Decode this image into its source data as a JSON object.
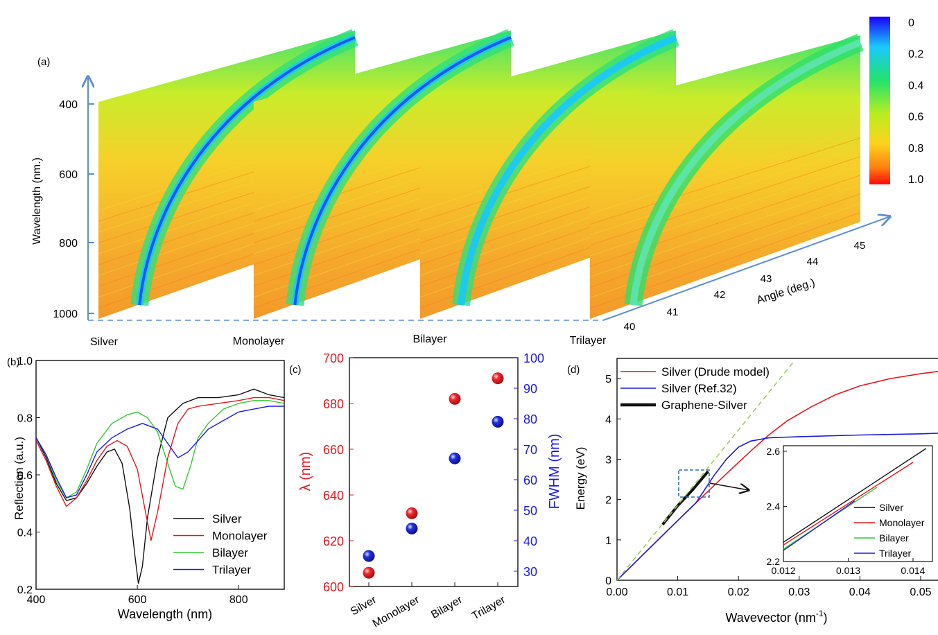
{
  "panels": {
    "a": "(a)",
    "b": "(b)",
    "c": "(c)",
    "d": "(d)"
  },
  "colors": {
    "axis_arrow": "#5b8fd0",
    "red": "#e8141b",
    "blue": "#1a1ae6",
    "green": "#2ecc2e",
    "black": "#111111",
    "inset_box": "#2f6fb0",
    "dashed_line": "#9ccc5a"
  },
  "chart_data": [
    {
      "id": "a",
      "type": "heatmap",
      "ylabel": "Wavelength (nm.)",
      "zlabel": "Angle (deg.)",
      "yticks": [
        "400",
        "600",
        "800",
        "1000"
      ],
      "angle_ticks": [
        "40",
        "41",
        "42",
        "43",
        "44",
        "45"
      ],
      "panels": [
        "Silver",
        "Monolayer",
        "Bilayer",
        "Trilayer"
      ],
      "colorbar": {
        "ticks": [
          "0",
          "0.2",
          "0.4",
          "0.6",
          "0.8",
          "1.0"
        ],
        "min": 0,
        "max": 1.0
      }
    },
    {
      "id": "b",
      "type": "line",
      "xlabel": "Wavelength (nm)",
      "ylabel": "Reflection (a.u.)",
      "xlim": [
        400,
        890
      ],
      "ylim": [
        0.2,
        1.0
      ],
      "xticks": [
        "400",
        "600",
        "800"
      ],
      "yticks": [
        "0.2",
        "0.4",
        "0.6",
        "0.8",
        "1.0"
      ],
      "legend": "bottom-right",
      "series": [
        {
          "name": "Silver",
          "color": "#111111",
          "points": [
            [
              400,
              0.73
            ],
            [
              420,
              0.66
            ],
            [
              440,
              0.57
            ],
            [
              460,
              0.51
            ],
            [
              480,
              0.52
            ],
            [
              500,
              0.57
            ],
            [
              520,
              0.63
            ],
            [
              540,
              0.68
            ],
            [
              555,
              0.69
            ],
            [
              570,
              0.64
            ],
            [
              585,
              0.48
            ],
            [
              595,
              0.32
            ],
            [
              602,
              0.22
            ],
            [
              610,
              0.28
            ],
            [
              620,
              0.45
            ],
            [
              640,
              0.66
            ],
            [
              660,
              0.8
            ],
            [
              690,
              0.85
            ],
            [
              720,
              0.87
            ],
            [
              760,
              0.87
            ],
            [
              800,
              0.88
            ],
            [
              830,
              0.9
            ],
            [
              860,
              0.88
            ],
            [
              890,
              0.87
            ]
          ]
        },
        {
          "name": "Monolayer",
          "color": "#e8141b",
          "points": [
            [
              400,
              0.72
            ],
            [
              420,
              0.65
            ],
            [
              440,
              0.56
            ],
            [
              460,
              0.49
            ],
            [
              480,
              0.52
            ],
            [
              500,
              0.58
            ],
            [
              520,
              0.65
            ],
            [
              540,
              0.7
            ],
            [
              560,
              0.72
            ],
            [
              580,
              0.7
            ],
            [
              600,
              0.62
            ],
            [
              615,
              0.48
            ],
            [
              627,
              0.37
            ],
            [
              640,
              0.47
            ],
            [
              660,
              0.66
            ],
            [
              680,
              0.78
            ],
            [
              700,
              0.83
            ],
            [
              720,
              0.84
            ],
            [
              760,
              0.85
            ],
            [
              800,
              0.86
            ],
            [
              830,
              0.87
            ],
            [
              860,
              0.87
            ],
            [
              890,
              0.86
            ]
          ]
        },
        {
          "name": "Bilayer",
          "color": "#2ecc2e",
          "points": [
            [
              400,
              0.73
            ],
            [
              420,
              0.67
            ],
            [
              440,
              0.58
            ],
            [
              460,
              0.52
            ],
            [
              480,
              0.54
            ],
            [
              500,
              0.62
            ],
            [
              520,
              0.71
            ],
            [
              550,
              0.78
            ],
            [
              580,
              0.81
            ],
            [
              600,
              0.82
            ],
            [
              620,
              0.8
            ],
            [
              640,
              0.75
            ],
            [
              660,
              0.64
            ],
            [
              675,
              0.56
            ],
            [
              690,
              0.55
            ],
            [
              705,
              0.63
            ],
            [
              720,
              0.73
            ],
            [
              740,
              0.78
            ],
            [
              770,
              0.83
            ],
            [
              800,
              0.85
            ],
            [
              830,
              0.86
            ],
            [
              860,
              0.86
            ],
            [
              890,
              0.85
            ]
          ]
        },
        {
          "name": "Trilayer",
          "color": "#1a1ae6",
          "points": [
            [
              400,
              0.73
            ],
            [
              420,
              0.67
            ],
            [
              440,
              0.59
            ],
            [
              460,
              0.52
            ],
            [
              480,
              0.53
            ],
            [
              500,
              0.6
            ],
            [
              520,
              0.68
            ],
            [
              550,
              0.73
            ],
            [
              580,
              0.76
            ],
            [
              610,
              0.78
            ],
            [
              640,
              0.76
            ],
            [
              660,
              0.71
            ],
            [
              680,
              0.66
            ],
            [
              700,
              0.68
            ],
            [
              720,
              0.72
            ],
            [
              740,
              0.76
            ],
            [
              770,
              0.79
            ],
            [
              800,
              0.82
            ],
            [
              830,
              0.83
            ],
            [
              860,
              0.84
            ],
            [
              890,
              0.84
            ]
          ]
        }
      ]
    },
    {
      "id": "c",
      "type": "scatter",
      "categories": [
        "Silver",
        "Monolayer",
        "Bilayer",
        "Trilayer"
      ],
      "ylabel_left": "λ (nm)",
      "ylabel_right": "FWHM (nm)",
      "ylim_left": [
        600,
        700
      ],
      "ylim_right": [
        25,
        100
      ],
      "yticks_left": [
        "600",
        "620",
        "640",
        "660",
        "680",
        "700"
      ],
      "yticks_right": [
        "30",
        "40",
        "50",
        "60",
        "70",
        "80",
        "90",
        "100"
      ],
      "lambda_values": [
        606,
        632,
        682,
        691
      ],
      "fwhm_values": [
        35,
        44,
        67,
        79
      ]
    },
    {
      "id": "d",
      "type": "line",
      "xlabel": "Wavevector (nm",
      "xlabel_sup": "-1",
      "xlabel_end": ")",
      "ylabel": "Energy (eV)",
      "xlim": [
        0,
        0.054
      ],
      "ylim": [
        0,
        5.5
      ],
      "xticks": [
        "0.00",
        "0.01",
        "0.02",
        "0.03",
        "0.04",
        "0.05"
      ],
      "yticks": [
        "0",
        "1",
        "2",
        "3",
        "4",
        "5"
      ],
      "legend": "top-left",
      "series": [
        {
          "name": "Silver (Drude model)",
          "color": "#e8141b",
          "points": [
            [
              0,
              0
            ],
            [
              0.005,
              0.74
            ],
            [
              0.01,
              1.48
            ],
            [
              0.013,
              1.92
            ],
            [
              0.016,
              2.35
            ],
            [
              0.019,
              2.78
            ],
            [
              0.022,
              3.2
            ],
            [
              0.025,
              3.6
            ],
            [
              0.028,
              3.95
            ],
            [
              0.032,
              4.3
            ],
            [
              0.036,
              4.6
            ],
            [
              0.04,
              4.82
            ],
            [
              0.045,
              5.0
            ],
            [
              0.05,
              5.12
            ],
            [
              0.054,
              5.2
            ]
          ]
        },
        {
          "name": "Silver (Ref.32)",
          "color": "#1a1ae6",
          "points": [
            [
              0,
              0
            ],
            [
              0.005,
              0.74
            ],
            [
              0.01,
              1.48
            ],
            [
              0.013,
              1.92
            ],
            [
              0.016,
              2.6
            ],
            [
              0.018,
              3.0
            ],
            [
              0.02,
              3.3
            ],
            [
              0.022,
              3.45
            ],
            [
              0.025,
              3.53
            ],
            [
              0.03,
              3.56
            ],
            [
              0.04,
              3.6
            ],
            [
              0.05,
              3.63
            ],
            [
              0.054,
              3.65
            ]
          ]
        },
        {
          "name": "Graphene-Silver",
          "color": "#111111",
          "points": [
            [
              0.0075,
              1.38
            ],
            [
              0.01,
              1.85
            ],
            [
              0.0125,
              2.25
            ],
            [
              0.015,
              2.7
            ]
          ]
        },
        {
          "name": "",
          "color": "#9ccc5a",
          "dashed": true,
          "points": [
            [
              0,
              0
            ],
            [
              0.029,
              5.4
            ]
          ]
        }
      ],
      "inset": {
        "xlim": [
          0.012,
          0.0143
        ],
        "ylim": [
          2.2,
          2.62
        ],
        "xticks": [
          "0.012",
          "0.013",
          "0.014"
        ],
        "yticks": [
          "2.2",
          "2.4",
          "2.6"
        ],
        "series": [
          {
            "name": "Silver",
            "color": "#111111",
            "points": [
              [
                0.012,
                2.27
              ],
              [
                0.0142,
                2.61
              ]
            ]
          },
          {
            "name": "Monolayer",
            "color": "#e8141b",
            "points": [
              [
                0.012,
                2.26
              ],
              [
                0.014,
                2.56
              ]
            ]
          },
          {
            "name": "Bilayer",
            "color": "#2ecc2e",
            "points": [
              [
                0.012,
                2.245
              ],
              [
                0.01345,
                2.47
              ]
            ]
          },
          {
            "name": "Trilayer",
            "color": "#1a1ae6",
            "points": [
              [
                0.012,
                2.24
              ],
              [
                0.0131,
                2.42
              ]
            ]
          }
        ]
      }
    }
  ]
}
